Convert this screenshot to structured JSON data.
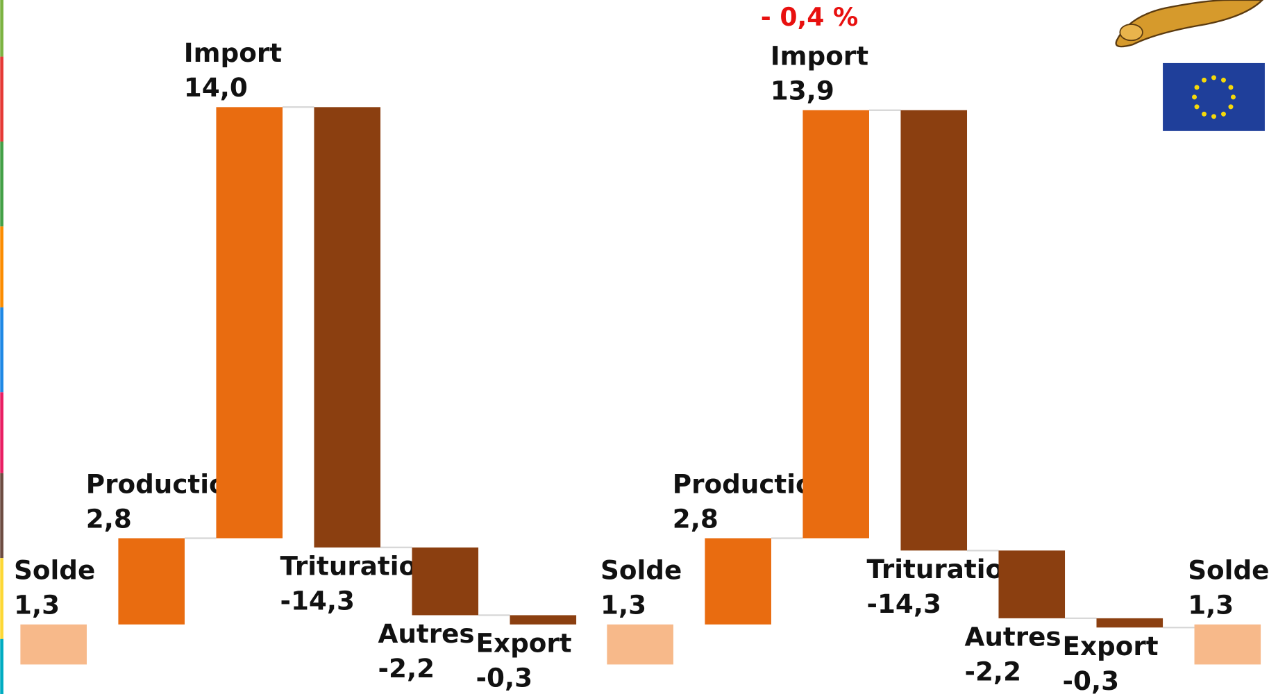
{
  "chart_data": [
    {
      "type": "waterfall",
      "categories": [
        "Solde",
        "Production",
        "Import",
        "Trituration",
        "Autres",
        "Export"
      ],
      "values": [
        1.3,
        2.8,
        14.0,
        -14.3,
        -2.2,
        -0.3
      ],
      "value_labels": [
        "1,3",
        "2,8",
        "14,0",
        "-14,3",
        "-2,2",
        "-0,3"
      ],
      "colors": [
        "#f7b98a",
        "#e96c10",
        "#e96c10",
        "#8b3f10",
        "#8b3f10",
        "#8b3f10"
      ]
    },
    {
      "type": "waterfall",
      "annotation": "- 0,4 %",
      "categories": [
        "Solde",
        "Production",
        "Import",
        "Trituration",
        "Autres",
        "Export",
        "Solde"
      ],
      "values": [
        1.3,
        2.8,
        13.9,
        -14.3,
        -2.2,
        -0.3,
        1.3
      ],
      "value_labels": [
        "1,3",
        "2,8",
        "13,9",
        "-14,3",
        "-2,2",
        "-0,3",
        "1,3"
      ],
      "colors": [
        "#f7b98a",
        "#e96c10",
        "#e96c10",
        "#8b3f10",
        "#8b3f10",
        "#8b3f10",
        "#f7b98a"
      ]
    }
  ]
}
